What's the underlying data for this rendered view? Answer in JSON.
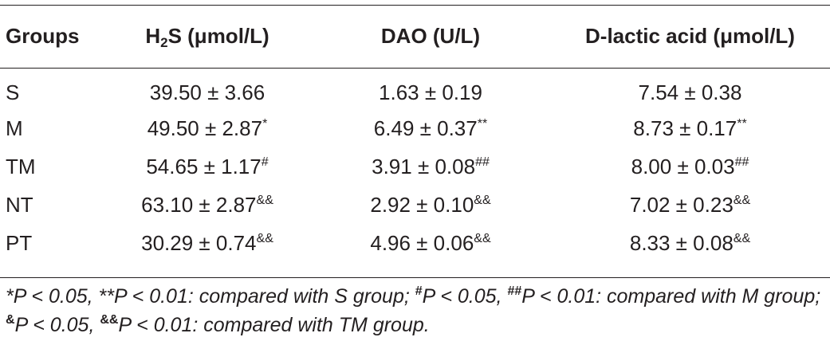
{
  "table": {
    "headers": {
      "groups": "Groups",
      "h2s_prefix": "H",
      "h2s_sub": "2",
      "h2s_suffix": "S (μmol/L)",
      "dao": "DAO (U/L)",
      "dlactic": "D-lactic acid (μmol/L)"
    },
    "rows": [
      {
        "group": "S",
        "h2s": "39.50 ± 3.66",
        "h2s_mark": "",
        "dao": "1.63 ± 0.19",
        "dao_mark": "",
        "dlactic": "7.54 ± 0.38",
        "dlactic_mark": ""
      },
      {
        "group": "M",
        "h2s": "49.50 ± 2.87",
        "h2s_mark": "*",
        "dao": "6.49 ± 0.37",
        "dao_mark": "**",
        "dlactic": "8.73 ± 0.17",
        "dlactic_mark": "**"
      },
      {
        "group": "TM",
        "h2s": "54.65 ± 1.17",
        "h2s_mark": "#",
        "dao": "3.91 ± 0.08",
        "dao_mark": "##",
        "dlactic": "8.00 ± 0.03",
        "dlactic_mark": "##"
      },
      {
        "group": "NT",
        "h2s": "63.10 ± 2.87",
        "h2s_mark": "&&",
        "dao": "2.92 ± 0.10",
        "dao_mark": "&&",
        "dlactic": "7.02 ± 0.23",
        "dlactic_mark": "&&"
      },
      {
        "group": "PT",
        "h2s": "30.29 ± 0.74",
        "h2s_mark": "&&",
        "dao": "4.96 ± 0.06",
        "dao_mark": "&&",
        "dlactic": "8.33 ± 0.08",
        "dlactic_mark": "&&"
      }
    ]
  },
  "footnote": {
    "part1": "*P < 0.05, **P < 0.01: compared with S group; ",
    "mark2": "#",
    "part2": "P < 0.05, ",
    "mark3": "##",
    "part3": "P < 0.01: compared with M group; ",
    "mark4": "&",
    "part4": "P < 0.05, ",
    "mark5": "&&",
    "part5": "P < 0.01: compared with TM group."
  }
}
